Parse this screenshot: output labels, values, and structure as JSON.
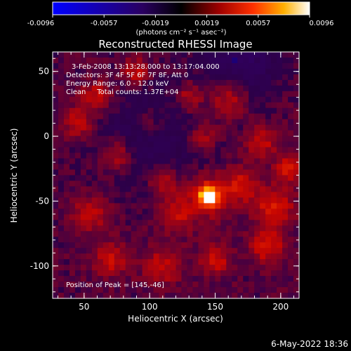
{
  "chart_data": {
    "type": "heatmap",
    "title": "Reconstructed RHESSI Image",
    "xlabel": "Heliocentric X (arcsec)",
    "ylabel": "Heliocentric Y (arcsec)",
    "xlim": [
      26,
      214
    ],
    "ylim": [
      -125,
      65
    ],
    "xticks": [
      50,
      100,
      150,
      200
    ],
    "yticks": [
      50,
      0,
      -50,
      -100
    ],
    "annotations": [
      "3-Feb-2008 13:13:28.000 to 13:17:04.000",
      "Detectors: 3F 4F 5F 6F 7F 8F, Att 0",
      "Energy Range: 6.0 - 12.0 keV",
      "Clean     Total counts: 1.37E+04"
    ],
    "peak_label": "Position of Peak = [145,-46]",
    "peak": {
      "x": 145,
      "y": -46,
      "value": 0.0096
    },
    "colorbar": {
      "ticks": [
        "-0.0096",
        "-0.0057",
        "-0.0019",
        "0.0019",
        "0.0057",
        "0.0096"
      ],
      "range": [
        -0.0096,
        0.0096
      ],
      "units": "(photons cm⁻² s⁻¹ asec⁻²)"
    },
    "features": [
      {
        "x": 145,
        "y": -46,
        "sigma": 5,
        "amp": 0.0096
      },
      {
        "x": 145,
        "y": -46,
        "sigma": 12,
        "amp": 0.003
      },
      {
        "x": 170,
        "y": -38,
        "sigma": 9,
        "amp": 0.003
      },
      {
        "x": 120,
        "y": -60,
        "sigma": 10,
        "amp": 0.0028
      },
      {
        "x": 110,
        "y": -35,
        "sigma": 8,
        "amp": 0.003
      },
      {
        "x": 195,
        "y": -55,
        "sigma": 10,
        "amp": 0.0036
      },
      {
        "x": 205,
        "y": -25,
        "sigma": 7,
        "amp": 0.0032
      },
      {
        "x": 185,
        "y": -5,
        "sigma": 8,
        "amp": 0.0028
      },
      {
        "x": 160,
        "y": 30,
        "sigma": 10,
        "amp": 0.003
      },
      {
        "x": 130,
        "y": 30,
        "sigma": 8,
        "amp": 0.0026
      },
      {
        "x": 90,
        "y": 50,
        "sigma": 7,
        "amp": 0.0032
      },
      {
        "x": 60,
        "y": 30,
        "sigma": 9,
        "amp": 0.003
      },
      {
        "x": 45,
        "y": 10,
        "sigma": 8,
        "amp": 0.0028
      },
      {
        "x": 75,
        "y": -15,
        "sigma": 9,
        "amp": 0.003
      },
      {
        "x": 55,
        "y": -60,
        "sigma": 10,
        "amp": 0.0026
      },
      {
        "x": 70,
        "y": -95,
        "sigma": 9,
        "amp": 0.0028
      },
      {
        "x": 110,
        "y": -100,
        "sigma": 10,
        "amp": 0.0026
      },
      {
        "x": 150,
        "y": -95,
        "sigma": 8,
        "amp": 0.003
      },
      {
        "x": 190,
        "y": -85,
        "sigma": 9,
        "amp": 0.0032
      },
      {
        "x": 100,
        "y": 10,
        "sigma": 8,
        "amp": 0.002
      },
      {
        "x": 140,
        "y": 0,
        "sigma": 8,
        "amp": 0.0024
      },
      {
        "x": 100,
        "y": 0,
        "sigma": 30,
        "amp": -0.002
      },
      {
        "x": 170,
        "y": 60,
        "sigma": 20,
        "amp": -0.003
      }
    ]
  },
  "timestamp": "6-May-2022 18:36"
}
